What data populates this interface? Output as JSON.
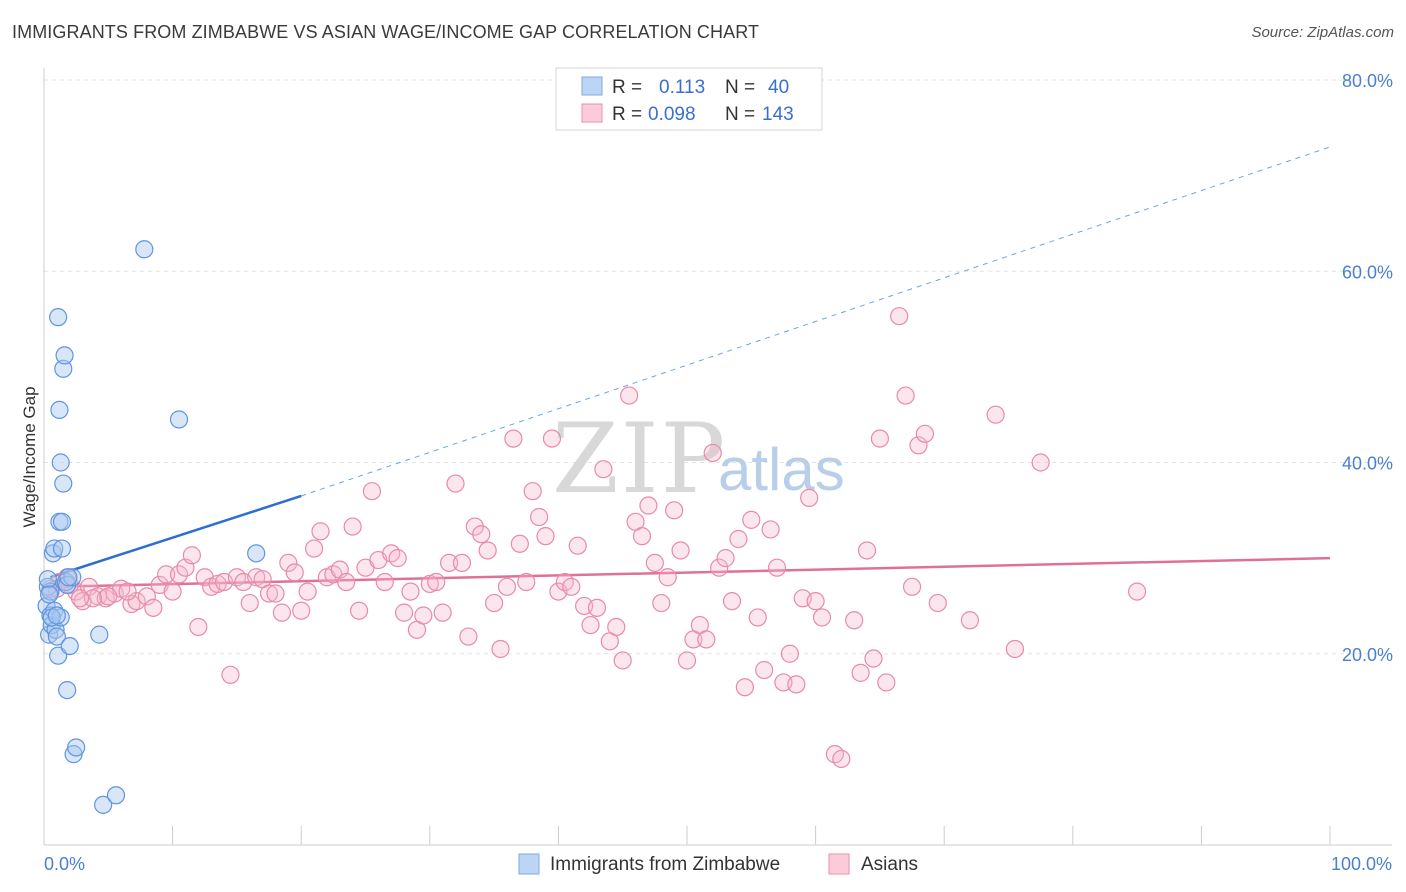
{
  "header": {
    "title": "IMMIGRANTS FROM ZIMBABWE VS ASIAN WAGE/INCOME GAP CORRELATION CHART",
    "source": "Source: ZipAtlas.com"
  },
  "legend_top": {
    "rows": [
      {
        "r_label": "R =",
        "r_value": "0.113",
        "n_label": "N =",
        "n_value": "40",
        "color": "#a9c8f0"
      },
      {
        "r_label": "R =",
        "r_value": "0.098",
        "n_label": "N =",
        "n_value": "143",
        "color": "#f7b8cc"
      }
    ]
  },
  "legend_bottom": {
    "items": [
      {
        "label": "Immigrants from Zimbabwe",
        "color": "#a9c8f0"
      },
      {
        "label": "Asians",
        "color": "#f7b8cc"
      }
    ]
  },
  "watermark": {
    "zip": "ZIP",
    "atlas": "atlas"
  },
  "chart_data": {
    "type": "scatter",
    "title": "IMMIGRANTS FROM ZIMBABWE VS ASIAN WAGE/INCOME GAP CORRELATION CHART",
    "xlabel": "",
    "ylabel": "Wage/Income Gap",
    "xlim": [
      0,
      100
    ],
    "ylim": [
      0,
      80
    ],
    "x_tick_labels": [
      "0.0%",
      "100.0%"
    ],
    "y_ticks": [
      20,
      40,
      60,
      80
    ],
    "y_tick_labels": [
      "20.0%",
      "40.0%",
      "60.0%",
      "80.0%"
    ],
    "grid": true,
    "legend_position": "top-center",
    "series": [
      {
        "name": "Immigrants from Zimbabwe",
        "color": "#6fa3e8",
        "fill": "#a9c8f0",
        "trend": {
          "x": [
            0.5,
            20
          ],
          "y": [
            28.0,
            36.5
          ],
          "dashed_extension_to": [
            100,
            73.0
          ]
        },
        "points": [
          [
            0.2,
            25.0
          ],
          [
            0.3,
            27.0
          ],
          [
            0.4,
            22.0
          ],
          [
            0.5,
            24.0
          ],
          [
            0.5,
            26.5
          ],
          [
            0.6,
            23.0
          ],
          [
            0.7,
            30.5
          ],
          [
            0.8,
            31.0
          ],
          [
            0.8,
            24.5
          ],
          [
            0.9,
            22.5
          ],
          [
            1.0,
            21.8
          ],
          [
            1.1,
            19.8
          ],
          [
            1.1,
            55.2
          ],
          [
            1.2,
            45.5
          ],
          [
            1.2,
            33.8
          ],
          [
            1.3,
            40.0
          ],
          [
            1.3,
            23.8
          ],
          [
            1.4,
            31.0
          ],
          [
            1.4,
            33.8
          ],
          [
            1.5,
            49.8
          ],
          [
            1.5,
            37.8
          ],
          [
            1.6,
            51.2
          ],
          [
            1.7,
            27.5
          ],
          [
            1.8,
            27.2
          ],
          [
            1.8,
            16.2
          ],
          [
            2.0,
            20.8
          ],
          [
            2.2,
            28.0
          ],
          [
            2.3,
            9.5
          ],
          [
            2.5,
            10.2
          ],
          [
            4.3,
            22.0
          ],
          [
            4.6,
            4.2
          ],
          [
            5.6,
            5.2
          ],
          [
            7.8,
            62.3
          ],
          [
            10.5,
            44.5
          ],
          [
            16.5,
            30.5
          ],
          [
            0.3,
            27.8
          ],
          [
            0.6,
            23.8
          ],
          [
            1.0,
            24.0
          ],
          [
            1.9,
            28.0
          ],
          [
            0.4,
            26.2
          ]
        ]
      },
      {
        "name": "Asians",
        "color": "#e7799d",
        "fill": "#f7b8cc",
        "trend": {
          "x": [
            0.5,
            100
          ],
          "y": [
            27.0,
            30.0
          ]
        },
        "points": [
          [
            0.5,
            26.8
          ],
          [
            1.2,
            27.5
          ],
          [
            1.8,
            28.0
          ],
          [
            2.5,
            26.5
          ],
          [
            3.0,
            25.5
          ],
          [
            3.5,
            27.0
          ],
          [
            4.2,
            26.0
          ],
          [
            4.8,
            25.8
          ],
          [
            5.5,
            26.3
          ],
          [
            6.0,
            26.8
          ],
          [
            6.8,
            25.2
          ],
          [
            7.2,
            25.5
          ],
          [
            8.0,
            26.0
          ],
          [
            8.5,
            24.8
          ],
          [
            9.0,
            27.2
          ],
          [
            9.5,
            28.3
          ],
          [
            10.0,
            26.5
          ],
          [
            10.5,
            28.3
          ],
          [
            11.0,
            29.0
          ],
          [
            11.5,
            30.3
          ],
          [
            12.0,
            22.8
          ],
          [
            12.5,
            28.0
          ],
          [
            13.0,
            27.0
          ],
          [
            13.5,
            27.3
          ],
          [
            14.0,
            27.5
          ],
          [
            14.5,
            17.8
          ],
          [
            15.0,
            28.0
          ],
          [
            15.5,
            27.5
          ],
          [
            16.0,
            25.3
          ],
          [
            16.5,
            28.0
          ],
          [
            17.0,
            27.8
          ],
          [
            17.5,
            26.3
          ],
          [
            18.0,
            26.3
          ],
          [
            18.5,
            24.3
          ],
          [
            19.0,
            29.5
          ],
          [
            19.5,
            28.5
          ],
          [
            20.0,
            24.5
          ],
          [
            20.5,
            26.5
          ],
          [
            21.0,
            31.0
          ],
          [
            21.5,
            32.8
          ],
          [
            22.0,
            28.0
          ],
          [
            22.5,
            28.3
          ],
          [
            23.0,
            28.8
          ],
          [
            23.5,
            27.5
          ],
          [
            24.0,
            33.3
          ],
          [
            24.5,
            24.5
          ],
          [
            25.0,
            29.0
          ],
          [
            25.5,
            37.0
          ],
          [
            26.0,
            29.8
          ],
          [
            26.5,
            27.5
          ],
          [
            27.0,
            30.5
          ],
          [
            27.5,
            30.0
          ],
          [
            28.0,
            24.3
          ],
          [
            28.5,
            26.5
          ],
          [
            29.0,
            22.5
          ],
          [
            29.5,
            24.0
          ],
          [
            30.0,
            27.3
          ],
          [
            30.5,
            27.5
          ],
          [
            31.0,
            24.3
          ],
          [
            31.5,
            29.5
          ],
          [
            32.0,
            37.8
          ],
          [
            32.5,
            29.5
          ],
          [
            33.0,
            21.8
          ],
          [
            33.5,
            33.3
          ],
          [
            34.0,
            32.5
          ],
          [
            34.5,
            30.8
          ],
          [
            35.0,
            25.3
          ],
          [
            35.5,
            20.5
          ],
          [
            36.0,
            27.0
          ],
          [
            36.5,
            42.5
          ],
          [
            37.0,
            31.5
          ],
          [
            37.5,
            27.5
          ],
          [
            38.0,
            37.0
          ],
          [
            38.5,
            34.3
          ],
          [
            39.0,
            32.3
          ],
          [
            39.5,
            42.5
          ],
          [
            40.0,
            26.5
          ],
          [
            40.5,
            27.5
          ],
          [
            41.0,
            27.0
          ],
          [
            41.5,
            31.3
          ],
          [
            42.0,
            25.0
          ],
          [
            42.5,
            23.0
          ],
          [
            43.0,
            24.8
          ],
          [
            43.5,
            39.3
          ],
          [
            44.0,
            21.3
          ],
          [
            44.5,
            22.8
          ],
          [
            45.0,
            19.3
          ],
          [
            45.5,
            47.0
          ],
          [
            46.0,
            33.8
          ],
          [
            46.5,
            32.3
          ],
          [
            47.0,
            35.5
          ],
          [
            47.5,
            29.5
          ],
          [
            48.0,
            25.3
          ],
          [
            48.5,
            28.0
          ],
          [
            49.0,
            35.0
          ],
          [
            49.5,
            30.8
          ],
          [
            50.0,
            19.3
          ],
          [
            50.5,
            21.5
          ],
          [
            51.0,
            23.0
          ],
          [
            51.5,
            21.5
          ],
          [
            52.0,
            41.0
          ],
          [
            52.5,
            29.0
          ],
          [
            53.0,
            30.0
          ],
          [
            53.5,
            25.5
          ],
          [
            54.0,
            32.0
          ],
          [
            54.5,
            16.5
          ],
          [
            55.0,
            34.0
          ],
          [
            55.5,
            23.8
          ],
          [
            56.0,
            18.3
          ],
          [
            56.5,
            33.0
          ],
          [
            57.0,
            29.0
          ],
          [
            57.5,
            17.0
          ],
          [
            58.0,
            20.0
          ],
          [
            58.5,
            16.8
          ],
          [
            59.0,
            25.8
          ],
          [
            59.5,
            36.3
          ],
          [
            60.0,
            25.5
          ],
          [
            60.5,
            23.8
          ],
          [
            61.5,
            9.5
          ],
          [
            62.0,
            9.0
          ],
          [
            63.0,
            23.5
          ],
          [
            63.5,
            18.0
          ],
          [
            64.0,
            30.8
          ],
          [
            64.5,
            19.5
          ],
          [
            65.0,
            42.5
          ],
          [
            65.5,
            17.0
          ],
          [
            66.5,
            55.3
          ],
          [
            67.0,
            47.0
          ],
          [
            67.5,
            27.0
          ],
          [
            68.0,
            41.8
          ],
          [
            68.5,
            43.0
          ],
          [
            69.5,
            25.3
          ],
          [
            72.0,
            23.5
          ],
          [
            74.0,
            45.0
          ],
          [
            75.5,
            20.5
          ],
          [
            77.5,
            40.0
          ],
          [
            85.0,
            26.5
          ],
          [
            5.0,
            26.0
          ],
          [
            3.8,
            25.8
          ],
          [
            2.0,
            27.2
          ],
          [
            1.0,
            26.8
          ],
          [
            2.8,
            25.8
          ],
          [
            6.5,
            26.5
          ]
        ]
      }
    ]
  }
}
